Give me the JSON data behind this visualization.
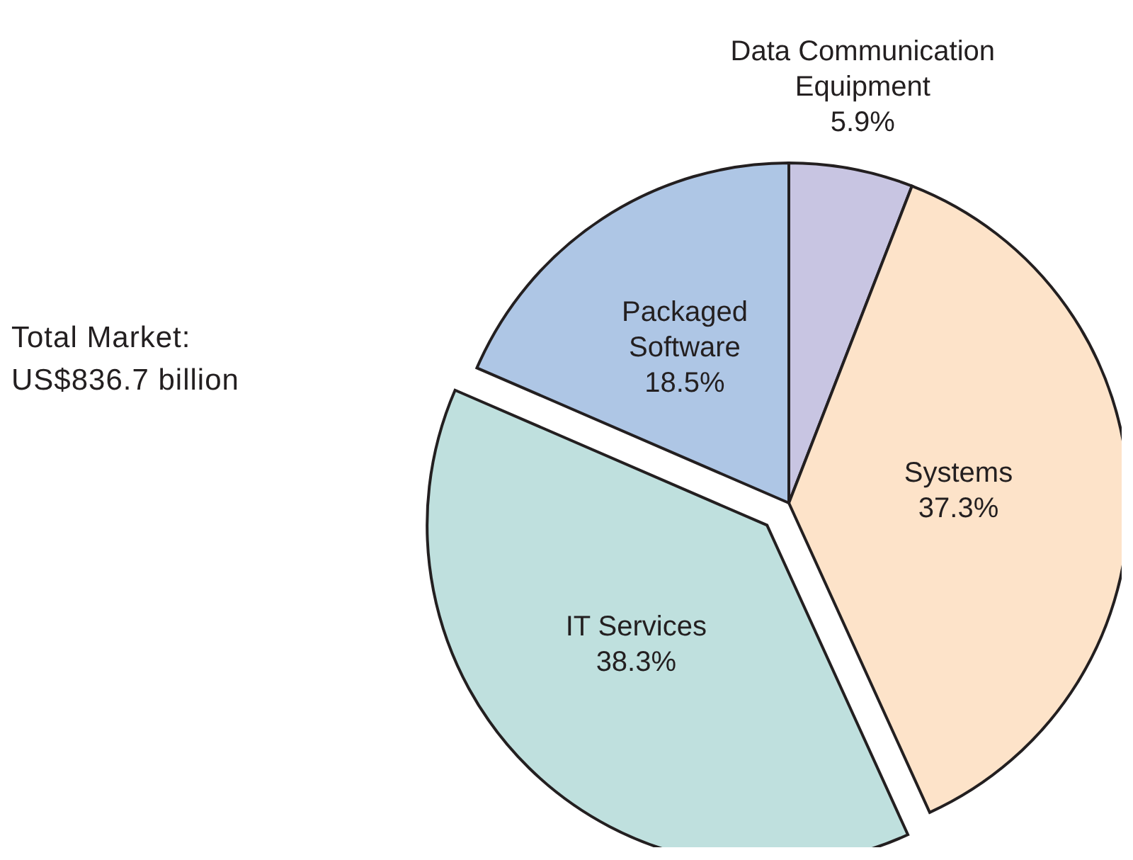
{
  "chart_data": {
    "type": "pie",
    "categories": [
      "Data Communication Equipment",
      "Systems",
      "IT Services",
      "Packaged Software"
    ],
    "values": [
      5.9,
      37.3,
      38.3,
      18.5
    ],
    "colors": [
      "#c8c5e2",
      "#fde3c9",
      "#bfe0de",
      "#aec6e5"
    ],
    "value_labels": [
      "5.9%",
      "37.3%",
      "38.3%",
      "18.5%"
    ],
    "legend": false,
    "annotations": [
      "Total Market: US$836.7 billion"
    ]
  }
}
